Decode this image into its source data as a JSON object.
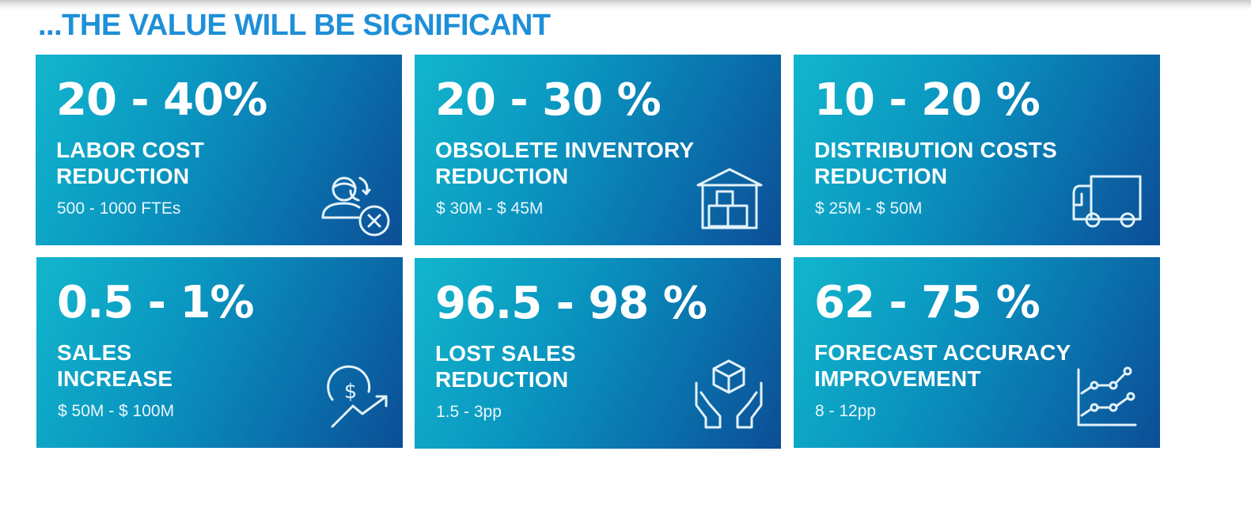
{
  "headline": "...THE VALUE WILL BE SIGNIFICANT",
  "colors": {
    "headline": "#1f8fd8",
    "card_gradient_start": "#12b6cd",
    "card_gradient_end": "#0c4e96",
    "card_text": "#ffffff"
  },
  "cards": [
    {
      "value": "20 - 40%",
      "label_line1": "LABOR COST",
      "label_line2": "REDUCTION",
      "detail": "500 - 1000 FTEs",
      "icon": "person-remove-icon"
    },
    {
      "value": "20 - 30 %",
      "label_line1": "OBSOLETE INVENTORY",
      "label_line2": "REDUCTION",
      "detail": "$ 30M - $ 45M",
      "icon": "warehouse-icon"
    },
    {
      "value": "10 - 20 %",
      "label_line1": "DISTRIBUTION COSTS",
      "label_line2": "REDUCTION",
      "detail": "$ 25M - $ 50M",
      "icon": "truck-icon"
    },
    {
      "value": "0.5 - 1%",
      "label_line1": "SALES",
      "label_line2": "INCREASE",
      "detail": "$ 50M - $ 100M",
      "icon": "dollar-growth-icon"
    },
    {
      "value": "96.5 - 98 %",
      "label_line1": "LOST SALES",
      "label_line2": "REDUCTION",
      "detail": "1.5 - 3pp",
      "icon": "hands-box-icon"
    },
    {
      "value": "62 - 75 %",
      "label_line1": "FORECAST ACCURACY",
      "label_line2": "IMPROVEMENT",
      "detail": "8 - 12pp",
      "icon": "line-chart-icon"
    }
  ]
}
